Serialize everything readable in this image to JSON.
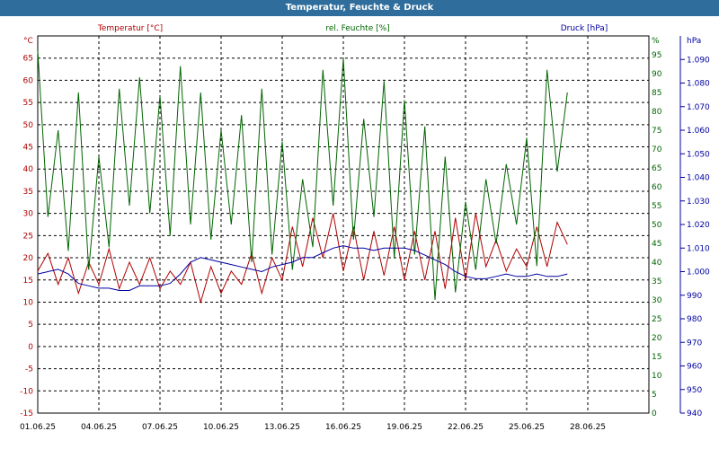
{
  "window": {
    "title": "Temperatur, Feuchte & Druck"
  },
  "chart_data": {
    "type": "line",
    "title": "Temperatur, Feuchte & Druck",
    "grid": true,
    "x": {
      "type": "date",
      "tick_labels": [
        "01.06.25",
        "04.06.25",
        "07.06.25",
        "10.06.25",
        "13.06.25",
        "16.06.25",
        "19.06.25",
        "22.06.25",
        "25.06.25",
        "28.06.25"
      ],
      "range": [
        "2025-06-01",
        "2025-07-01"
      ]
    },
    "axes": {
      "temperature": {
        "label": "Temperatur [°C]",
        "unit": "°C",
        "range": [
          -15,
          70
        ],
        "ticks": [
          -15,
          -10,
          -5,
          0,
          5,
          10,
          15,
          20,
          25,
          30,
          35,
          40,
          45,
          50,
          55,
          60,
          65
        ],
        "color": "#b00000"
      },
      "humidity": {
        "label": "rel. Feuchte [%]",
        "unit": "%",
        "range": [
          0,
          100
        ],
        "ticks": [
          0,
          5,
          10,
          15,
          20,
          25,
          30,
          35,
          40,
          45,
          50,
          55,
          60,
          65,
          70,
          75,
          80,
          85,
          90,
          95
        ],
        "color": "#006400"
      },
      "pressure": {
        "label": "Druck [hPa]",
        "unit": "hPa",
        "range": [
          940,
          1100
        ],
        "ticks": [
          "940",
          "950",
          "960",
          "970",
          "980",
          "990",
          "1.000",
          "1.010",
          "1.020",
          "1.030",
          "1.040",
          "1.050",
          "1.060",
          "1.070",
          "1.080",
          "1.090"
        ],
        "color": "#0000a0"
      }
    },
    "series": [
      {
        "name": "Temperatur [°C]",
        "axis": "temperature",
        "color": "#b00000",
        "x": [
          "2025-06-01",
          "2025-06-01T12:00",
          "2025-06-02",
          "2025-06-02T12:00",
          "2025-06-03",
          "2025-06-03T12:00",
          "2025-06-04",
          "2025-06-04T12:00",
          "2025-06-05",
          "2025-06-05T12:00",
          "2025-06-06",
          "2025-06-06T12:00",
          "2025-06-07",
          "2025-06-07T12:00",
          "2025-06-08",
          "2025-06-08T12:00",
          "2025-06-09",
          "2025-06-09T12:00",
          "2025-06-10",
          "2025-06-10T12:00",
          "2025-06-11",
          "2025-06-11T12:00",
          "2025-06-12",
          "2025-06-12T12:00",
          "2025-06-13",
          "2025-06-13T12:00",
          "2025-06-14",
          "2025-06-14T12:00",
          "2025-06-15",
          "2025-06-15T12:00",
          "2025-06-16",
          "2025-06-16T12:00",
          "2025-06-17",
          "2025-06-17T12:00",
          "2025-06-18",
          "2025-06-18T12:00",
          "2025-06-19",
          "2025-06-19T12:00",
          "2025-06-20",
          "2025-06-20T12:00",
          "2025-06-21",
          "2025-06-21T12:00",
          "2025-06-22",
          "2025-06-22T12:00",
          "2025-06-23",
          "2025-06-23T12:00",
          "2025-06-24",
          "2025-06-24T12:00",
          "2025-06-25",
          "2025-06-25T12:00",
          "2025-06-26",
          "2025-06-26T12:00",
          "2025-06-27"
        ],
        "values": [
          17,
          21,
          14,
          20,
          12,
          19,
          14,
          22,
          13,
          19,
          14,
          20,
          13,
          17,
          14,
          19,
          10,
          18,
          12,
          17,
          14,
          21,
          12,
          20,
          15,
          27,
          18,
          29,
          20,
          30,
          17,
          27,
          15,
          26,
          16,
          27,
          15,
          26,
          15,
          26,
          13,
          29,
          15,
          30,
          18,
          24,
          17,
          22,
          18,
          27,
          18,
          28,
          23
        ]
      },
      {
        "name": "rel. Feuchte [%]",
        "axis": "humidity",
        "color": "#006400",
        "x": [
          "2025-06-01",
          "2025-06-01T12:00",
          "2025-06-02",
          "2025-06-02T12:00",
          "2025-06-03",
          "2025-06-03T12:00",
          "2025-06-04",
          "2025-06-04T12:00",
          "2025-06-05",
          "2025-06-05T12:00",
          "2025-06-06",
          "2025-06-06T12:00",
          "2025-06-07",
          "2025-06-07T12:00",
          "2025-06-08",
          "2025-06-08T12:00",
          "2025-06-09",
          "2025-06-09T12:00",
          "2025-06-10",
          "2025-06-10T12:00",
          "2025-06-11",
          "2025-06-11T12:00",
          "2025-06-12",
          "2025-06-12T12:00",
          "2025-06-13",
          "2025-06-13T12:00",
          "2025-06-14",
          "2025-06-14T12:00",
          "2025-06-15",
          "2025-06-15T12:00",
          "2025-06-16",
          "2025-06-16T12:00",
          "2025-06-17",
          "2025-06-17T12:00",
          "2025-06-18",
          "2025-06-18T12:00",
          "2025-06-19",
          "2025-06-19T12:00",
          "2025-06-20",
          "2025-06-20T12:00",
          "2025-06-21",
          "2025-06-21T12:00",
          "2025-06-22",
          "2025-06-22T12:00",
          "2025-06-23",
          "2025-06-23T12:00",
          "2025-06-24",
          "2025-06-24T12:00",
          "2025-06-25",
          "2025-06-25T12:00",
          "2025-06-26",
          "2025-06-26T12:00",
          "2025-06-27"
        ],
        "values": [
          96,
          52,
          75,
          43,
          85,
          38,
          68,
          44,
          86,
          55,
          89,
          53,
          84,
          47,
          92,
          50,
          85,
          46,
          75,
          50,
          79,
          40,
          86,
          42,
          72,
          38,
          62,
          44,
          91,
          55,
          94,
          46,
          78,
          52,
          88,
          41,
          83,
          42,
          76,
          30,
          68,
          32,
          56,
          38,
          62,
          45,
          66,
          50,
          73,
          39,
          91,
          64,
          85
        ]
      },
      {
        "name": "Druck [hPa]",
        "axis": "pressure",
        "color": "#0000a0",
        "x": [
          "2025-06-01",
          "2025-06-01T12:00",
          "2025-06-02",
          "2025-06-02T12:00",
          "2025-06-03",
          "2025-06-03T12:00",
          "2025-06-04",
          "2025-06-04T12:00",
          "2025-06-05",
          "2025-06-05T12:00",
          "2025-06-06",
          "2025-06-06T12:00",
          "2025-06-07",
          "2025-06-07T12:00",
          "2025-06-08",
          "2025-06-08T12:00",
          "2025-06-09",
          "2025-06-09T12:00",
          "2025-06-10",
          "2025-06-10T12:00",
          "2025-06-11",
          "2025-06-11T12:00",
          "2025-06-12",
          "2025-06-12T12:00",
          "2025-06-13",
          "2025-06-13T12:00",
          "2025-06-14",
          "2025-06-14T12:00",
          "2025-06-15",
          "2025-06-15T12:00",
          "2025-06-16",
          "2025-06-16T12:00",
          "2025-06-17",
          "2025-06-17T12:00",
          "2025-06-18",
          "2025-06-18T12:00",
          "2025-06-19",
          "2025-06-19T12:00",
          "2025-06-20",
          "2025-06-20T12:00",
          "2025-06-21",
          "2025-06-21T12:00",
          "2025-06-22",
          "2025-06-22T12:00",
          "2025-06-23",
          "2025-06-23T12:00",
          "2025-06-24",
          "2025-06-24T12:00",
          "2025-06-25",
          "2025-06-25T12:00",
          "2025-06-26",
          "2025-06-26T12:00",
          "2025-06-27"
        ],
        "values": [
          999,
          1000,
          1001,
          999,
          995,
          994,
          993,
          993,
          992,
          992,
          994,
          994,
          994,
          995,
          999,
          1004,
          1006,
          1005,
          1004,
          1003,
          1002,
          1001,
          1000,
          1002,
          1003,
          1004,
          1006,
          1006,
          1008,
          1010,
          1011,
          1010,
          1010,
          1009,
          1010,
          1010,
          1010,
          1009,
          1007,
          1005,
          1003,
          1000,
          998,
          997,
          997,
          998,
          999,
          998,
          998,
          999,
          998,
          998,
          999
        ]
      }
    ]
  }
}
